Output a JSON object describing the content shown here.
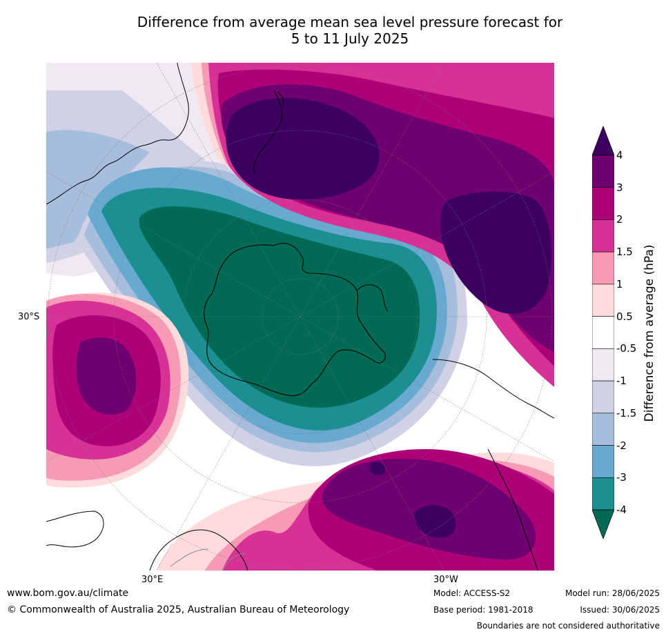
{
  "title_line1": "Difference from average mean sea level pressure forecast for",
  "title_line2": "5 to 11 July 2025",
  "map_labels": {
    "lat_30s": "30°S",
    "lon_30e": "30°E",
    "lon_30w": "30°W"
  },
  "colorbar": {
    "label": "Difference from average (hPa)",
    "ticks": [
      "4",
      "3",
      "2",
      "1.5",
      "1",
      "0.5",
      "-0.5",
      "-1",
      "-1.5",
      "-2",
      "-3",
      "-4"
    ],
    "colors": [
      "#3b0060",
      "#6e0070",
      "#ad0078",
      "#d83196",
      "#f79ab5",
      "#ffdcdb",
      "#ffffff",
      "#f1e9f1",
      "#d0d1e6",
      "#a6bddb",
      "#67a9cf",
      "#1c8f92",
      "#006a55"
    ]
  },
  "footer": {
    "website": "www.bom.gov.au/climate",
    "copyright": "© Commonwealth of Australia 2025, Australian Bureau of Meteorology",
    "model": "Model: ACCESS-S2",
    "base_period": "Base period: 1981-2018",
    "model_run": "Model run: 28/06/2025",
    "issued": "Issued: 30/06/2025",
    "disclaimer": "Boundaries are not considered authoritative"
  }
}
